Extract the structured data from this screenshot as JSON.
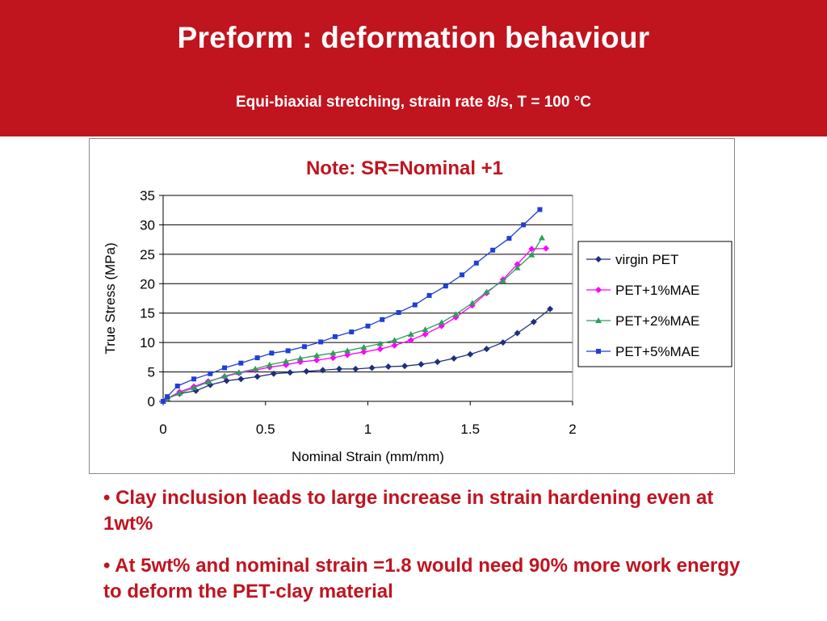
{
  "header": {
    "title": "Preform : deformation behaviour",
    "subtitle": "Equi-biaxial stretching, strain rate 8/s, T = 100 °C",
    "background": "#c0141f"
  },
  "bullets": [
    "• Clay inclusion leads to large increase in strain hardening even at 1wt%",
    "• At 5wt% and nominal strain =1.8 would need 90% more work energy to deform the PET-clay material"
  ],
  "chart_data": {
    "type": "line",
    "title": "Note: SR=Nominal +1",
    "xlabel": "Nominal Strain (mm/mm)",
    "ylabel": "True Stress (MPa)",
    "xlim": [
      0,
      2
    ],
    "ylim": [
      0,
      35
    ],
    "xticks": [
      "0",
      "0.5",
      "1",
      "1.5",
      "2"
    ],
    "yticks": [
      "0",
      "5",
      "10",
      "15",
      "20",
      "25",
      "30",
      "35"
    ],
    "grid": "horizontal",
    "legend_position": "right",
    "series": [
      {
        "name": "virgin PET",
        "color": "#1f2f7a",
        "marker": "diamond",
        "x": [
          0,
          0.02,
          0.08,
          0.16,
          0.23,
          0.31,
          0.38,
          0.46,
          0.54,
          0.62,
          0.7,
          0.78,
          0.86,
          0.94,
          1.02,
          1.1,
          1.18,
          1.26,
          1.34,
          1.42,
          1.5,
          1.58,
          1.66,
          1.73,
          1.81,
          1.89
        ],
        "y": [
          0,
          0.5,
          1.3,
          1.8,
          2.8,
          3.5,
          3.8,
          4.2,
          4.7,
          4.9,
          5.1,
          5.3,
          5.5,
          5.5,
          5.7,
          5.9,
          6.0,
          6.3,
          6.7,
          7.3,
          8.0,
          8.9,
          10.0,
          11.6,
          13.5,
          15.7
        ]
      },
      {
        "name": "PET+1%MAE",
        "color": "#ff00ff",
        "marker": "diamond",
        "x": [
          0,
          0.02,
          0.08,
          0.15,
          0.22,
          0.3,
          0.37,
          0.45,
          0.52,
          0.6,
          0.67,
          0.75,
          0.83,
          0.9,
          0.98,
          1.06,
          1.13,
          1.21,
          1.28,
          1.36,
          1.43,
          1.51,
          1.58,
          1.66,
          1.73,
          1.8,
          1.87
        ],
        "y": [
          0,
          0.5,
          1.6,
          2.5,
          3.4,
          4.2,
          4.8,
          5.3,
          5.8,
          6.2,
          6.7,
          7.0,
          7.4,
          7.9,
          8.4,
          8.9,
          9.5,
          10.4,
          11.4,
          12.8,
          14.3,
          16.3,
          18.4,
          20.7,
          23.3,
          25.9,
          26.0
        ]
      },
      {
        "name": "PET+2%MAE",
        "color": "#2e9e5a",
        "marker": "triangle",
        "x": [
          0,
          0.02,
          0.08,
          0.15,
          0.22,
          0.3,
          0.37,
          0.45,
          0.52,
          0.6,
          0.67,
          0.75,
          0.83,
          0.9,
          0.98,
          1.06,
          1.13,
          1.21,
          1.28,
          1.36,
          1.43,
          1.51,
          1.58,
          1.66,
          1.73,
          1.8,
          1.85
        ],
        "y": [
          0,
          0.5,
          1.4,
          2.3,
          3.3,
          4.3,
          4.9,
          5.5,
          6.2,
          6.8,
          7.3,
          7.8,
          8.2,
          8.6,
          9.2,
          9.8,
          10.4,
          11.4,
          12.2,
          13.4,
          14.8,
          16.7,
          18.6,
          20.5,
          22.7,
          24.9,
          27.8
        ]
      },
      {
        "name": "PET+5%MAE",
        "color": "#1f3fd6",
        "marker": "square",
        "x": [
          0,
          0.02,
          0.07,
          0.15,
          0.23,
          0.3,
          0.38,
          0.46,
          0.53,
          0.61,
          0.69,
          0.77,
          0.84,
          0.92,
          1.0,
          1.07,
          1.15,
          1.23,
          1.3,
          1.38,
          1.46,
          1.53,
          1.61,
          1.69,
          1.76,
          1.84
        ],
        "y": [
          0,
          0.8,
          2.6,
          3.8,
          4.7,
          5.7,
          6.5,
          7.4,
          8.2,
          8.6,
          9.3,
          10.1,
          11.0,
          11.8,
          12.8,
          13.9,
          15.1,
          16.4,
          18.0,
          19.6,
          21.5,
          23.5,
          25.7,
          27.7,
          30.0,
          32.6
        ]
      }
    ]
  }
}
